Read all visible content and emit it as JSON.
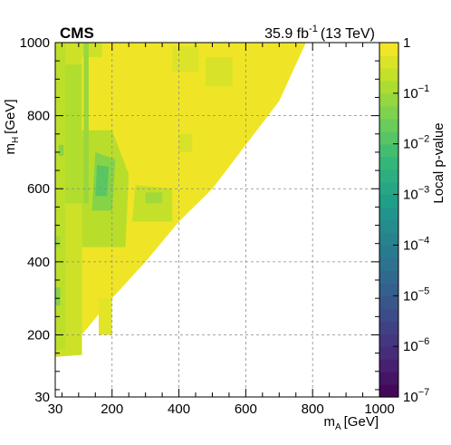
{
  "chart_data": {
    "type": "heatmap",
    "experiment_label": "CMS",
    "lumi_label": {
      "value": "35.9 fb",
      "exponent": "-1",
      "energy": "(13 TeV)"
    },
    "xlabel": {
      "symbol": "m",
      "subscript": "A",
      "unit": "[GeV]"
    },
    "ylabel": {
      "symbol": "m",
      "subscript": "H",
      "unit": "[GeV]"
    },
    "xlim": [
      30,
      1000
    ],
    "ylim": [
      30,
      1000
    ],
    "x_ticks": [
      "30",
      "200",
      "400",
      "600",
      "800",
      "1000"
    ],
    "y_ticks": [
      "30",
      "200",
      "400",
      "600",
      "800",
      "1000"
    ],
    "grid": true,
    "colorbar": {
      "label": "Local p-value",
      "scale": "log",
      "range": [
        1e-07,
        1
      ],
      "tick_labels": [
        {
          "base": "1",
          "exp": ""
        },
        {
          "base": "10",
          "exp": "−1"
        },
        {
          "base": "10",
          "exp": "−2"
        },
        {
          "base": "10",
          "exp": "−3"
        },
        {
          "base": "10",
          "exp": "−4"
        },
        {
          "base": "10",
          "exp": "−5"
        },
        {
          "base": "10",
          "exp": "−6"
        },
        {
          "base": "10",
          "exp": "−7"
        }
      ]
    },
    "scan_boundary": [
      [
        30,
        140
      ],
      [
        30,
        1000
      ],
      [
        780,
        1000
      ],
      [
        700,
        840
      ],
      [
        600,
        720
      ],
      [
        500,
        600
      ],
      [
        400,
        510
      ],
      [
        300,
        400
      ],
      [
        200,
        300
      ],
      [
        100,
        190
      ],
      [
        50,
        145
      ]
    ],
    "regions": [
      {
        "polygon": [
          [
            30,
            140
          ],
          [
            30,
            1000
          ],
          [
            780,
            1000
          ],
          [
            700,
            840
          ],
          [
            600,
            720
          ],
          [
            500,
            600
          ],
          [
            400,
            510
          ],
          [
            300,
            400
          ],
          [
            200,
            300
          ],
          [
            100,
            190
          ],
          [
            50,
            145
          ]
        ],
        "p_value": 0.7
      },
      {
        "polygon": [
          [
            30,
            140
          ],
          [
            30,
            1000
          ],
          [
            110,
            1000
          ],
          [
            110,
            145
          ]
        ],
        "p_value": 0.3
      },
      {
        "polygon": [
          [
            30,
            160
          ],
          [
            60,
            160
          ],
          [
            60,
            1000
          ],
          [
            30,
            1000
          ]
        ],
        "p_value": 0.2
      },
      {
        "polygon": [
          [
            60,
            560
          ],
          [
            110,
            560
          ],
          [
            110,
            940
          ],
          [
            60,
            940
          ]
        ],
        "p_value": 0.15
      },
      {
        "polygon": [
          [
            110,
            440
          ],
          [
            240,
            440
          ],
          [
            250,
            640
          ],
          [
            200,
            760
          ],
          [
            110,
            760
          ]
        ],
        "p_value": 0.18
      },
      {
        "polygon": [
          [
            140,
            540
          ],
          [
            200,
            540
          ],
          [
            210,
            680
          ],
          [
            150,
            700
          ]
        ],
        "p_value": 0.05
      },
      {
        "polygon": [
          [
            150,
            580
          ],
          [
            185,
            580
          ],
          [
            190,
            660
          ],
          [
            155,
            665
          ]
        ],
        "p_value": 0.015
      },
      {
        "polygon": [
          [
            260,
            510
          ],
          [
            380,
            510
          ],
          [
            380,
            600
          ],
          [
            270,
            610
          ]
        ],
        "p_value": 0.25
      },
      {
        "polygon": [
          [
            300,
            560
          ],
          [
            350,
            560
          ],
          [
            350,
            590
          ],
          [
            300,
            590
          ]
        ],
        "p_value": 0.1
      },
      {
        "polygon": [
          [
            480,
            880
          ],
          [
            560,
            880
          ],
          [
            560,
            960
          ],
          [
            480,
            960
          ]
        ],
        "p_value": 0.4
      },
      {
        "polygon": [
          [
            380,
            920
          ],
          [
            460,
            920
          ],
          [
            460,
            990
          ],
          [
            380,
            990
          ]
        ],
        "p_value": 0.45
      },
      {
        "polygon": [
          [
            400,
            700
          ],
          [
            440,
            700
          ],
          [
            440,
            750
          ],
          [
            400,
            750
          ]
        ],
        "p_value": 0.4
      },
      {
        "polygon": [
          [
            110,
            960
          ],
          [
            170,
            960
          ],
          [
            170,
            1000
          ],
          [
            110,
            1000
          ]
        ],
        "p_value": 0.3
      },
      {
        "polygon": [
          [
            115,
            560
          ],
          [
            130,
            560
          ],
          [
            130,
            1000
          ],
          [
            115,
            1000
          ]
        ],
        "p_value": 0.08
      },
      {
        "polygon": [
          [
            30,
            280
          ],
          [
            45,
            280
          ],
          [
            45,
            330
          ],
          [
            30,
            330
          ]
        ],
        "p_value": 0.05
      },
      {
        "polygon": [
          [
            30,
            440
          ],
          [
            45,
            440
          ],
          [
            45,
            470
          ],
          [
            30,
            470
          ]
        ],
        "p_value": 0.1
      },
      {
        "polygon": [
          [
            40,
            690
          ],
          [
            55,
            690
          ],
          [
            55,
            720
          ],
          [
            40,
            720
          ]
        ],
        "p_value": 0.05
      },
      {
        "polygon": [
          [
            160,
            200
          ],
          [
            200,
            200
          ],
          [
            200,
            300
          ],
          [
            160,
            300
          ]
        ],
        "p_value": 0.5
      }
    ]
  },
  "colors": {
    "background": "#ffffff",
    "grid": "#8a8a8a",
    "viridis": [
      "#440154",
      "#482878",
      "#3e4989",
      "#31688e",
      "#26828e",
      "#1f9e89",
      "#35b779",
      "#6ece58",
      "#b5de2b",
      "#fde725"
    ]
  }
}
